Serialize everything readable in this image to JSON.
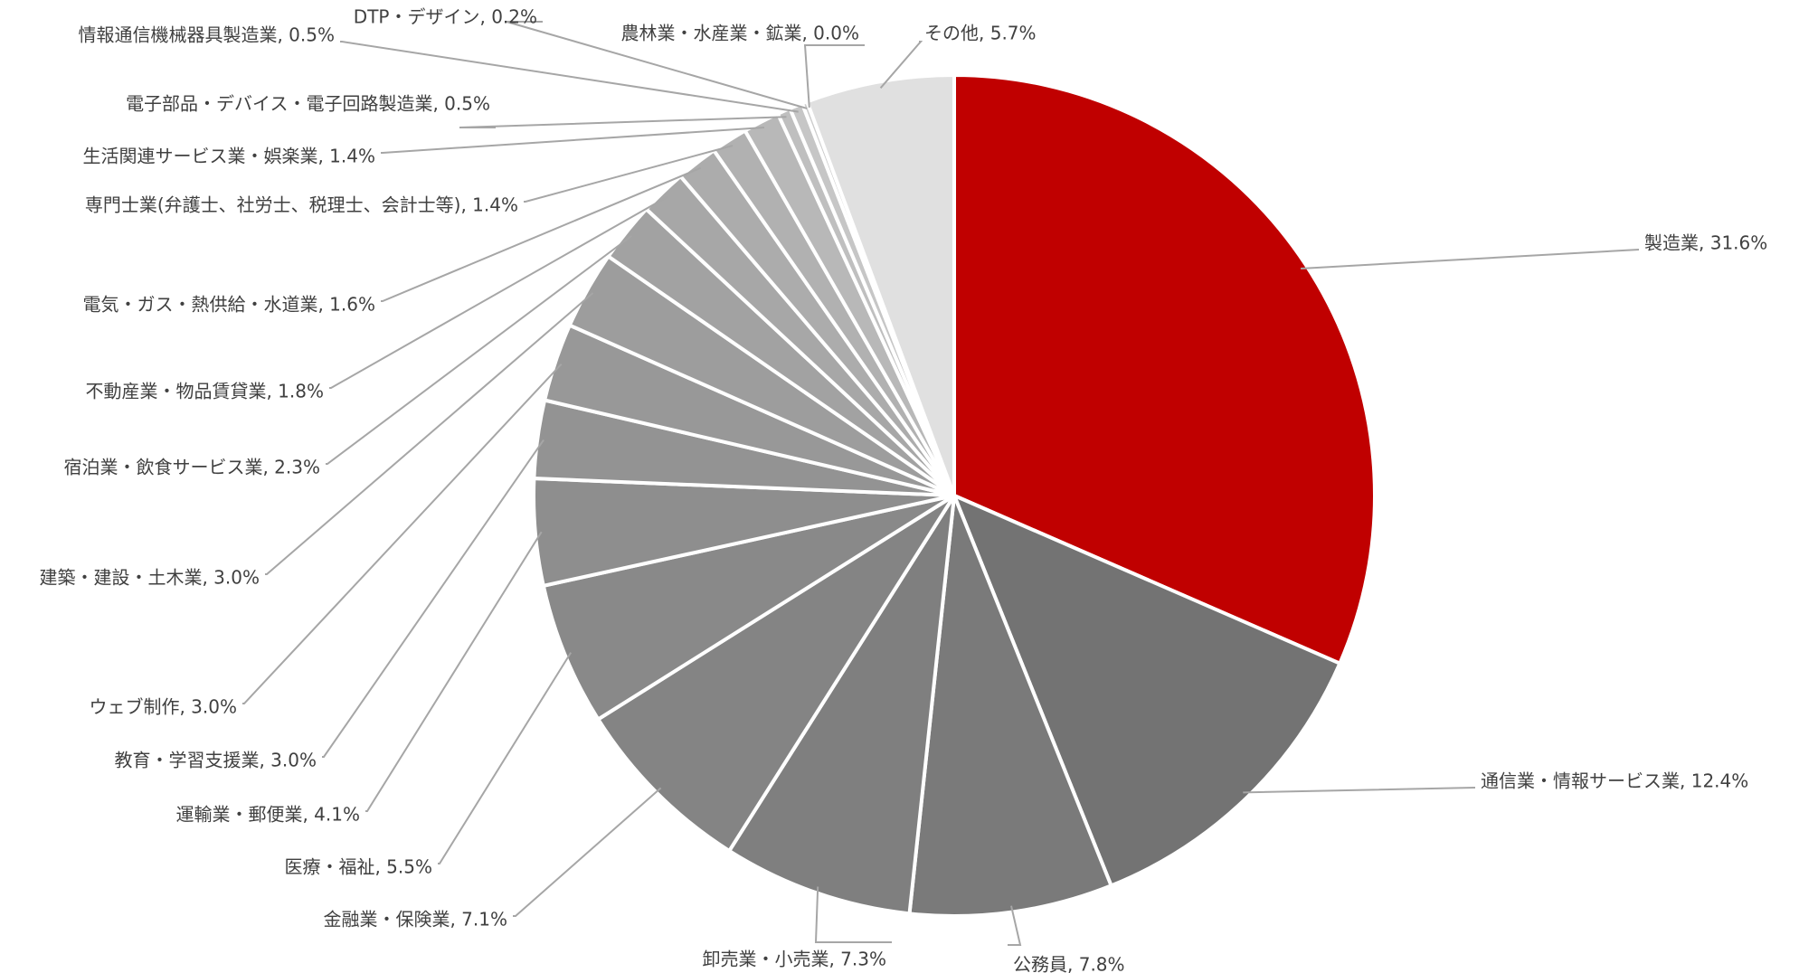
{
  "chart_data": {
    "type": "pie",
    "title": "",
    "start_angle_deg": 0,
    "direction": "clockwise",
    "legend": "none",
    "slices": [
      {
        "label": "製造業",
        "value": 31.6,
        "value_text": "31.6%",
        "color": "#c00000"
      },
      {
        "label": "通信業・情報サービス業",
        "value": 12.4,
        "value_text": "12.4%",
        "color": "#737373"
      },
      {
        "label": "公務員",
        "value": 7.8,
        "value_text": "7.8%",
        "color": "#7a7a7a"
      },
      {
        "label": "卸売業・小売業",
        "value": 7.3,
        "value_text": "7.3%",
        "color": "#7f7f7f"
      },
      {
        "label": "金融業・保険業",
        "value": 7.1,
        "value_text": "7.1%",
        "color": "#848484"
      },
      {
        "label": "医療・福祉",
        "value": 5.5,
        "value_text": "5.5%",
        "color": "#898989"
      },
      {
        "label": "運輸業・郵便業",
        "value": 4.1,
        "value_text": "4.1%",
        "color": "#8e8e8e"
      },
      {
        "label": "教育・学習支援業",
        "value": 3.0,
        "value_text": "3.0%",
        "color": "#939393"
      },
      {
        "label": "ウェブ制作",
        "value": 3.0,
        "value_text": "3.0%",
        "color": "#989898"
      },
      {
        "label": "建築・建設・土木業",
        "value": 3.0,
        "value_text": "3.0%",
        "color": "#9d9d9d"
      },
      {
        "label": "宿泊業・飲食サービス業",
        "value": 2.3,
        "value_text": "2.3%",
        "color": "#a2a2a2"
      },
      {
        "label": "不動産業・物品賃貸業",
        "value": 1.8,
        "value_text": "1.8%",
        "color": "#a7a7a7"
      },
      {
        "label": "電気・ガス・熱供給・水道業",
        "value": 1.6,
        "value_text": "1.6%",
        "color": "#acacac"
      },
      {
        "label": "専門士業(弁護士、社労士、税理士、会計士等)",
        "value": 1.4,
        "value_text": "1.4%",
        "color": "#b1b1b1"
      },
      {
        "label": "生活関連サービス業・娯楽業",
        "value": 1.4,
        "value_text": "1.4%",
        "color": "#b8b8b8"
      },
      {
        "label": "電子部品・デバイス・電子回路製造業",
        "value": 0.5,
        "value_text": "0.5%",
        "color": "#bfbfbf"
      },
      {
        "label": "情報通信機械器具製造業",
        "value": 0.5,
        "value_text": "0.5%",
        "color": "#c6c6c6"
      },
      {
        "label": "DTP・デザイン",
        "value": 0.2,
        "value_text": "0.2%",
        "color": "#cdcdcd"
      },
      {
        "label": "農林業・水産業・鉱業",
        "value": 0.0,
        "value_text": "0.0%",
        "color": "#d4d4d4"
      },
      {
        "label": "その他",
        "value": 5.7,
        "value_text": "5.7%",
        "color": "#e0e0e0"
      }
    ]
  }
}
